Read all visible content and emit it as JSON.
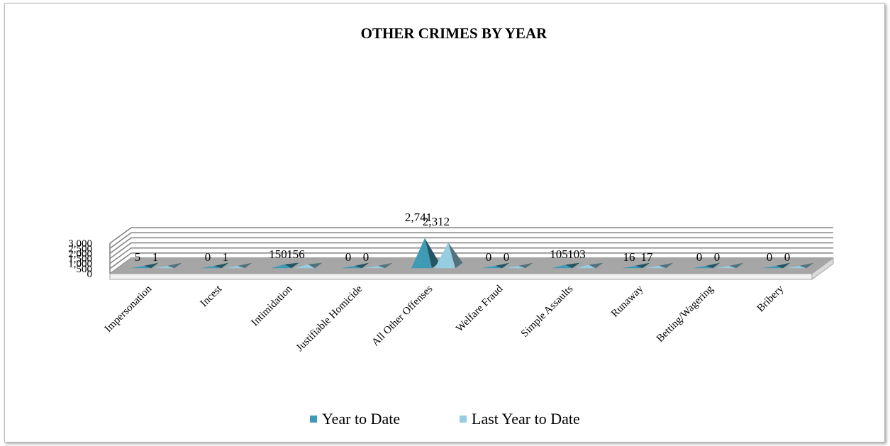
{
  "chart_data": {
    "type": "bar",
    "title": "OTHER CRIMES BY YEAR",
    "xlabel": "",
    "ylabel": "",
    "ylim": [
      0,
      3000
    ],
    "yticks": [
      "0",
      "500",
      "1,000",
      "1,500",
      "2,000",
      "2,500",
      "3,000"
    ],
    "grid": true,
    "legend_position": "bottom",
    "categories": [
      "Impersonation",
      "Incest",
      "Intimidation",
      "Justifiable Homicide",
      "All Other Offenses",
      "Welfare Fraud",
      "Simple Assaults",
      "Runaway",
      "Betting/Wagering",
      "Bribery"
    ],
    "series": [
      {
        "name": "Year to Date",
        "color": "#3f9ab5",
        "values": [
          5,
          0,
          150,
          0,
          2741,
          0,
          105,
          16,
          0,
          0
        ],
        "labels": [
          "5",
          "0",
          "150",
          "0",
          "2,741",
          "0",
          "105",
          "16",
          "0",
          "0"
        ]
      },
      {
        "name": "Last Year to Date",
        "color": "#97cde0",
        "values": [
          1,
          1,
          156,
          0,
          2312,
          0,
          103,
          17,
          0,
          0
        ],
        "labels": [
          "1",
          "1",
          "156",
          "0",
          "2,312",
          "0",
          "103",
          "17",
          "0",
          "0"
        ]
      }
    ]
  }
}
